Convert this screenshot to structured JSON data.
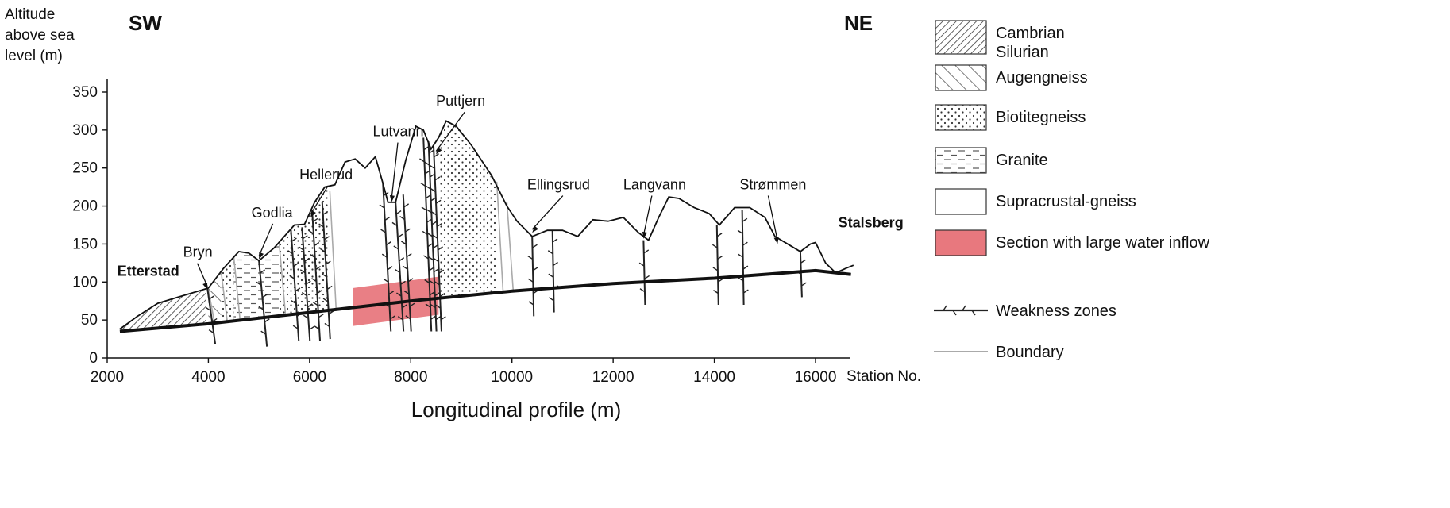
{
  "figure": {
    "ylabel_lines": [
      "Altitude",
      "above sea",
      "level (m)"
    ],
    "xlabel": "Longitudinal profile (m)",
    "x_end_label": "Station No.",
    "direction_left": "SW",
    "direction_right": "NE"
  },
  "axes": {
    "x_ticks": [
      "2000",
      "4000",
      "6000",
      "8000",
      "10000",
      "12000",
      "14000",
      "16000"
    ],
    "y_ticks": [
      "0",
      "50",
      "100",
      "150",
      "200",
      "250",
      "300",
      "350"
    ],
    "xlim": [
      2000,
      17000
    ],
    "ylim": [
      0,
      370
    ]
  },
  "surface_profile": [
    [
      2250,
      38
    ],
    [
      2600,
      55
    ],
    [
      3000,
      72
    ],
    [
      3400,
      80
    ],
    [
      3800,
      88
    ],
    [
      4000,
      92
    ],
    [
      4300,
      118
    ],
    [
      4600,
      140
    ],
    [
      4800,
      138
    ],
    [
      5000,
      128
    ],
    [
      5300,
      145
    ],
    [
      5700,
      175
    ],
    [
      5900,
      176
    ],
    [
      6100,
      205
    ],
    [
      6300,
      225
    ],
    [
      6500,
      228
    ],
    [
      6700,
      258
    ],
    [
      6900,
      262
    ],
    [
      7100,
      250
    ],
    [
      7300,
      265
    ],
    [
      7450,
      230
    ],
    [
      7550,
      205
    ],
    [
      7700,
      205
    ],
    [
      7900,
      260
    ],
    [
      8100,
      305
    ],
    [
      8250,
      300
    ],
    [
      8400,
      275
    ],
    [
      8550,
      290
    ],
    [
      8700,
      312
    ],
    [
      8900,
      305
    ],
    [
      9200,
      280
    ],
    [
      9600,
      240
    ],
    [
      9900,
      200
    ],
    [
      10100,
      180
    ],
    [
      10400,
      160
    ],
    [
      10700,
      168
    ],
    [
      11000,
      168
    ],
    [
      11300,
      160
    ],
    [
      11600,
      182
    ],
    [
      11900,
      180
    ],
    [
      12200,
      185
    ],
    [
      12500,
      165
    ],
    [
      12700,
      155
    ],
    [
      12900,
      185
    ],
    [
      13100,
      212
    ],
    [
      13300,
      210
    ],
    [
      13600,
      198
    ],
    [
      13900,
      190
    ],
    [
      14100,
      175
    ],
    [
      14400,
      198
    ],
    [
      14700,
      198
    ],
    [
      15000,
      185
    ],
    [
      15200,
      160
    ],
    [
      15500,
      148
    ],
    [
      15700,
      140
    ],
    [
      15900,
      150
    ],
    [
      16000,
      152
    ],
    [
      16200,
      125
    ],
    [
      16400,
      112
    ],
    [
      16600,
      118
    ],
    [
      16750,
      122
    ]
  ],
  "tunnel_profile": [
    [
      2250,
      35
    ],
    [
      4000,
      45
    ],
    [
      6000,
      60
    ],
    [
      8000,
      75
    ],
    [
      10000,
      88
    ],
    [
      12000,
      98
    ],
    [
      14000,
      105
    ],
    [
      16000,
      115
    ],
    [
      16700,
      110
    ]
  ],
  "rock_units": {
    "cambrian_silurian": [
      3900,
      3950,
      4000
    ],
    "augengneiss": [
      4000,
      4250
    ],
    "biotitegneiss": [
      [
        4250,
        4500
      ],
      [
        5400,
        6400
      ],
      [
        8550,
        9700
      ]
    ],
    "granite": [
      4500,
      5400
    ]
  },
  "boundaries": [
    [
      4000,
      90,
      45
    ],
    [
      4250,
      115,
      47
    ],
    [
      4500,
      135,
      50
    ],
    [
      5400,
      150,
      56
    ],
    [
      6400,
      220,
      63
    ],
    [
      9700,
      232,
      86
    ],
    [
      9900,
      205,
      88
    ]
  ],
  "water_inflow_section": {
    "x": [
      6850,
      8550
    ],
    "y_center": 70
  },
  "weakness_zones": [
    [
      3980,
      92,
      18
    ],
    [
      5000,
      128,
      15
    ],
    [
      5630,
      170,
      22
    ],
    [
      5850,
      172,
      22
    ],
    [
      6050,
      195,
      22
    ],
    [
      6250,
      205,
      25
    ],
    [
      7450,
      230,
      35
    ],
    [
      7700,
      205,
      35
    ],
    [
      7850,
      215,
      35
    ],
    [
      8250,
      290,
      35
    ],
    [
      8350,
      285,
      35
    ],
    [
      8450,
      280,
      35
    ],
    [
      10400,
      160,
      55
    ],
    [
      10800,
      168,
      60
    ],
    [
      12600,
      155,
      70
    ],
    [
      14050,
      175,
      70
    ],
    [
      14550,
      195,
      70
    ],
    [
      15700,
      140,
      80
    ]
  ],
  "stations": [
    {
      "name": "Etterstad",
      "bold": true,
      "label_x": 2200,
      "label_y": 108
    },
    {
      "name": "Bryn",
      "bold": false,
      "label_x": 3500,
      "label_y": 133,
      "arrow_x": 3980,
      "arrow_y": 90
    },
    {
      "name": "Godlia",
      "bold": false,
      "label_x": 4850,
      "label_y": 185,
      "arrow_x": 5000,
      "arrow_y": 130
    },
    {
      "name": "Hellerud",
      "bold": false,
      "label_x": 5800,
      "label_y": 235,
      "arrow_x": 6020,
      "arrow_y": 185
    },
    {
      "name": "Lutvann",
      "bold": false,
      "label_x": 7250,
      "label_y": 292,
      "arrow_x": 7620,
      "arrow_y": 205
    },
    {
      "name": "Puttjern",
      "bold": false,
      "label_x": 8500,
      "label_y": 332,
      "arrow_x": 8500,
      "arrow_y": 268
    },
    {
      "name": "Ellingsrud",
      "bold": false,
      "label_x": 10300,
      "label_y": 222,
      "arrow_x": 10400,
      "arrow_y": 165
    },
    {
      "name": "Langvann",
      "bold": false,
      "label_x": 12200,
      "label_y": 222,
      "arrow_x": 12600,
      "arrow_y": 157
    },
    {
      "name": "Strømmen",
      "bold": false,
      "label_x": 14500,
      "label_y": 222,
      "arrow_x": 15250,
      "arrow_y": 150
    },
    {
      "name": "Stalsberg",
      "bold": true,
      "label_x": 16450,
      "label_y": 172
    }
  ],
  "legend": [
    {
      "label_lines": [
        "Cambrian",
        "Silurian"
      ],
      "pattern": "crosshatch"
    },
    {
      "label_lines": [
        "Augengneiss"
      ],
      "pattern": "diagonal"
    },
    {
      "label_lines": [
        "Biotitegneiss"
      ],
      "pattern": "dots"
    },
    {
      "label_lines": [
        "Granite"
      ],
      "pattern": "dashes"
    },
    {
      "label_lines": [
        "Supracrustal-gneiss"
      ],
      "pattern": "none"
    },
    {
      "label_lines": [
        "Section with large water inflow"
      ],
      "pattern": "red"
    },
    {
      "label_lines": [
        "Weakness zones"
      ],
      "pattern": "weakness-line"
    },
    {
      "label_lines": [
        "Boundary"
      ],
      "pattern": "boundary-line"
    }
  ],
  "colors": {
    "water_inflow": "#e8787e",
    "boundary": "#aaaaaa",
    "line": "#111111"
  }
}
